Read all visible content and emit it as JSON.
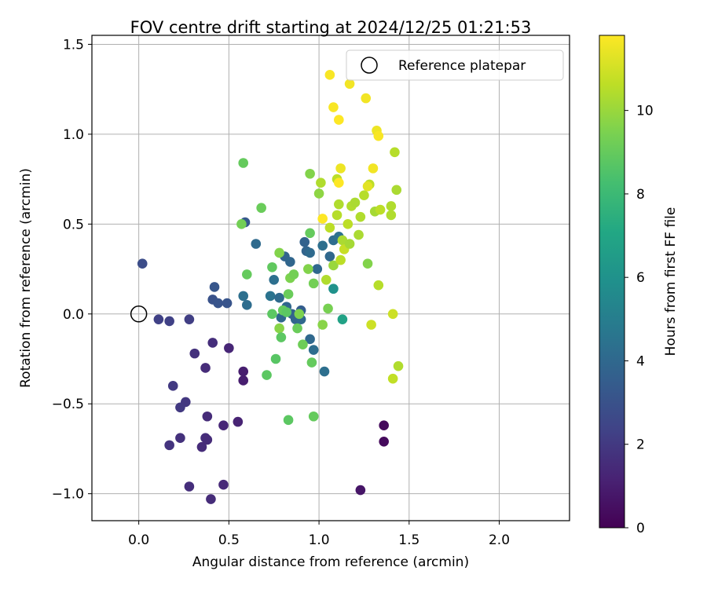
{
  "chart_data": {
    "type": "scatter",
    "title": "FOV centre drift starting at 2024/12/25 01:21:53",
    "xlabel": "Angular distance from reference (arcmin)",
    "ylabel": "Rotation from reference (arcmin)",
    "xlim": [
      -0.26,
      2.39
    ],
    "ylim": [
      -1.15,
      1.55
    ],
    "x_ticks": [
      0.0,
      0.5,
      1.0,
      1.5,
      2.0
    ],
    "x_tick_labels": [
      "0.0",
      "0.5",
      "1.0",
      "1.5",
      "2.0"
    ],
    "y_ticks": [
      -1.0,
      -0.5,
      0.0,
      0.5,
      1.0,
      1.5
    ],
    "y_tick_labels": [
      "−1.0",
      "−0.5",
      "0.0",
      "0.5",
      "1.0",
      "1.5"
    ],
    "grid": true,
    "legend": {
      "position": "top-right",
      "entries": [
        {
          "label": "Reference platepar",
          "marker": "open-circle",
          "x": 0.0,
          "y": 0.0
        }
      ]
    },
    "colorbar": {
      "label": "Hours from first FF file",
      "range": [
        0,
        11.8
      ],
      "ticks": [
        0,
        2,
        4,
        6,
        8,
        10
      ],
      "tick_labels": [
        "0",
        "2",
        "4",
        "6",
        "8",
        "10"
      ],
      "colormap": "viridis"
    },
    "series": [
      {
        "columns": [
          "x",
          "y",
          "hours"
        ],
        "points": [
          [
            0.02,
            0.28,
            2.8
          ],
          [
            0.11,
            -0.03,
            2.3
          ],
          [
            0.17,
            -0.04,
            2.3
          ],
          [
            0.28,
            -0.03,
            2.2
          ],
          [
            0.19,
            -0.4,
            2.0
          ],
          [
            0.26,
            -0.49,
            1.9
          ],
          [
            0.23,
            -0.52,
            2.0
          ],
          [
            0.17,
            -0.73,
            1.8
          ],
          [
            0.23,
            -0.69,
            1.7
          ],
          [
            0.35,
            -0.74,
            1.5
          ],
          [
            0.37,
            -0.69,
            1.6
          ],
          [
            0.38,
            -0.7,
            1.5
          ],
          [
            0.28,
            -0.96,
            1.6
          ],
          [
            0.4,
            -1.03,
            1.5
          ],
          [
            0.47,
            -0.95,
            1.4
          ],
          [
            0.38,
            -0.57,
            1.5
          ],
          [
            0.31,
            -0.22,
            1.7
          ],
          [
            0.37,
            -0.3,
            1.5
          ],
          [
            0.41,
            -0.16,
            1.6
          ],
          [
            0.47,
            -0.62,
            1.3
          ],
          [
            0.55,
            -0.6,
            1.2
          ],
          [
            0.5,
            -0.19,
            1.3
          ],
          [
            0.58,
            -0.32,
            1.0
          ],
          [
            0.58,
            -0.37,
            1.0
          ],
          [
            1.23,
            -0.98,
            0.7
          ],
          [
            1.36,
            -0.62,
            0.3
          ],
          [
            1.36,
            -0.71,
            0.3
          ],
          [
            0.41,
            0.08,
            3.0
          ],
          [
            0.44,
            0.06,
            3.1
          ],
          [
            0.42,
            0.15,
            3.2
          ],
          [
            0.49,
            0.06,
            3.1
          ],
          [
            0.59,
            0.51,
            3.3
          ],
          [
            0.58,
            0.1,
            4.3
          ],
          [
            0.6,
            0.05,
            4.2
          ],
          [
            0.65,
            0.39,
            4.1
          ],
          [
            0.73,
            0.1,
            4.5
          ],
          [
            0.78,
            0.09,
            4.1
          ],
          [
            0.75,
            0.19,
            4.3
          ],
          [
            0.79,
            -0.02,
            4.0
          ],
          [
            0.81,
            0.32,
            3.8
          ],
          [
            0.82,
            0.04,
            3.9
          ],
          [
            0.84,
            0.29,
            3.9
          ],
          [
            0.85,
            0.0,
            3.7
          ],
          [
            0.87,
            -0.03,
            3.8
          ],
          [
            0.9,
            0.02,
            3.5
          ],
          [
            0.9,
            -0.03,
            4.0
          ],
          [
            0.92,
            0.4,
            3.7
          ],
          [
            0.93,
            0.35,
            3.8
          ],
          [
            0.95,
            0.34,
            4.1
          ],
          [
            0.95,
            -0.14,
            4.0
          ],
          [
            0.97,
            -0.2,
            4.2
          ],
          [
            0.99,
            0.25,
            4.0
          ],
          [
            1.02,
            0.38,
            4.3
          ],
          [
            1.03,
            -0.32,
            4.3
          ],
          [
            1.06,
            0.32,
            4.0
          ],
          [
            1.08,
            0.41,
            4.2
          ],
          [
            1.11,
            0.43,
            4.4
          ],
          [
            1.08,
            0.14,
            6.0
          ],
          [
            1.13,
            -0.03,
            6.8
          ],
          [
            0.57,
            0.5,
            9.3
          ],
          [
            0.58,
            0.84,
            9.0
          ],
          [
            0.6,
            0.22,
            9.0
          ],
          [
            0.68,
            0.59,
            9.1
          ],
          [
            0.71,
            -0.34,
            8.8
          ],
          [
            0.74,
            0.26,
            8.9
          ],
          [
            0.76,
            -0.25,
            8.7
          ],
          [
            0.74,
            0.0,
            8.8
          ],
          [
            0.78,
            0.34,
            9.6
          ],
          [
            0.78,
            -0.08,
            9.7
          ],
          [
            0.79,
            -0.13,
            8.8
          ],
          [
            0.8,
            0.02,
            9.0
          ],
          [
            0.82,
            0.01,
            8.8
          ],
          [
            0.83,
            -0.59,
            8.8
          ],
          [
            0.83,
            0.11,
            9.1
          ],
          [
            0.84,
            0.2,
            9.5
          ],
          [
            0.86,
            0.22,
            9.3
          ],
          [
            0.88,
            -0.08,
            9.1
          ],
          [
            0.89,
            0.0,
            9.5
          ],
          [
            0.91,
            -0.17,
            9.2
          ],
          [
            0.94,
            0.25,
            9.6
          ],
          [
            0.95,
            0.78,
            9.6
          ],
          [
            0.95,
            0.45,
            9.0
          ],
          [
            0.96,
            -0.27,
            9.0
          ],
          [
            0.97,
            0.17,
            9.3
          ],
          [
            0.97,
            -0.57,
            9.0
          ],
          [
            1.0,
            0.67,
            9.8
          ],
          [
            1.01,
            0.73,
            10.4
          ],
          [
            1.02,
            -0.06,
            9.7
          ],
          [
            1.04,
            0.19,
            10.4
          ],
          [
            1.05,
            0.03,
            9.4
          ],
          [
            1.06,
            0.48,
            10.6
          ],
          [
            1.08,
            0.27,
            10.0
          ],
          [
            1.1,
            0.55,
            10.5
          ],
          [
            1.1,
            0.75,
            10.6
          ],
          [
            1.11,
            0.61,
            10.4
          ],
          [
            1.12,
            0.3,
            10.6
          ],
          [
            1.13,
            0.41,
            10.3
          ],
          [
            1.14,
            0.36,
            10.8
          ],
          [
            1.16,
            0.5,
            10.6
          ],
          [
            1.17,
            0.39,
            10.2
          ],
          [
            1.18,
            0.6,
            10.4
          ],
          [
            1.2,
            0.62,
            10.3
          ],
          [
            1.22,
            0.44,
            10.3
          ],
          [
            1.23,
            0.54,
            10.4
          ],
          [
            1.25,
            0.66,
            10.5
          ],
          [
            1.27,
            0.28,
            9.6
          ],
          [
            1.28,
            0.72,
            10.6
          ],
          [
            1.29,
            -0.06,
            10.9
          ],
          [
            1.31,
            0.57,
            10.2
          ],
          [
            1.33,
            0.16,
            10.5
          ],
          [
            1.34,
            0.58,
            10.6
          ],
          [
            1.4,
            0.6,
            10.4
          ],
          [
            1.4,
            0.55,
            10.4
          ],
          [
            1.41,
            -0.36,
            10.7
          ],
          [
            1.41,
            0.0,
            10.9
          ],
          [
            1.42,
            0.9,
            10.5
          ],
          [
            1.43,
            0.69,
            10.3
          ],
          [
            1.44,
            -0.29,
            10.4
          ],
          [
            1.06,
            1.33,
            11.7
          ],
          [
            1.08,
            1.15,
            11.7
          ],
          [
            1.11,
            1.08,
            11.8
          ],
          [
            1.12,
            0.81,
            11.5
          ],
          [
            1.17,
            1.28,
            11.6
          ],
          [
            1.26,
            1.2,
            11.6
          ],
          [
            1.32,
            1.02,
            11.5
          ],
          [
            1.33,
            0.99,
            11.7
          ],
          [
            1.3,
            0.81,
            11.6
          ],
          [
            1.02,
            0.53,
            11.8
          ],
          [
            1.11,
            0.73,
            11.8
          ],
          [
            1.27,
            0.71,
            11.3
          ]
        ]
      }
    ]
  }
}
